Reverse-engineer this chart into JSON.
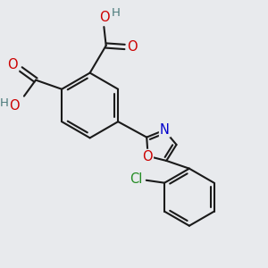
{
  "bg_color": "#e8eaed",
  "bond_color": "#1a1a1a",
  "bond_width": 1.5,
  "atom_colors": {
    "O": "#cc0000",
    "N": "#0000cc",
    "Cl": "#228b22",
    "H": "#4a7a7a",
    "C": "#1a1a1a"
  },
  "font_size": 10.5
}
